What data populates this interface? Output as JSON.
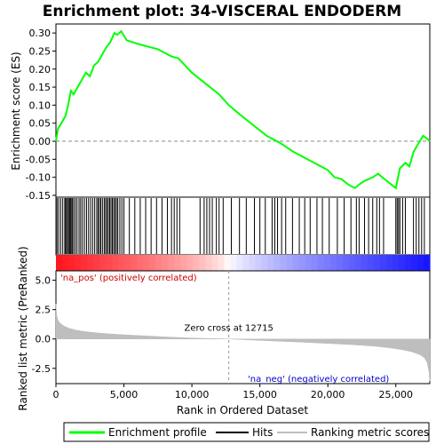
{
  "chart_data": {
    "type": "line",
    "title": "Enrichment plot: 34-VISCERAL ENDODERM",
    "xlabel": "Rank in Ordered Dataset",
    "ylabel_top": "Enrichment score (ES)",
    "ylabel_bottom": "Ranked list metric (PreRanked)",
    "xlim": [
      0,
      27500
    ],
    "x_ticks": [
      0,
      5000,
      10000,
      15000,
      20000,
      25000
    ],
    "x_tick_labels": [
      "0",
      "5,000",
      "10,000",
      "15,000",
      "20,000",
      "25,000"
    ],
    "es_ylim": [
      -0.155,
      0.325
    ],
    "es_ticks": [
      -0.15,
      -0.1,
      -0.05,
      0.0,
      0.05,
      0.1,
      0.15,
      0.2,
      0.25,
      0.3
    ],
    "es_tick_labels": [
      "-0.15",
      "-0.10",
      "-0.05",
      "0.00",
      "0.05",
      "0.10",
      "0.15",
      "0.20",
      "0.25",
      "0.30"
    ],
    "metric_ylim": [
      -3.8,
      5.8
    ],
    "metric_ticks": [
      -2.5,
      0.0,
      2.5,
      5.0
    ],
    "metric_tick_labels": [
      "-2.5",
      "0.0",
      "2.5",
      "5.0"
    ],
    "enrichment_profile": {
      "name": "Enrichment profile",
      "color": "#00ff00",
      "x": [
        0,
        150,
        400,
        700,
        900,
        1100,
        1300,
        1600,
        1900,
        2200,
        2500,
        2800,
        3100,
        3400,
        3700,
        4000,
        4300,
        4500,
        4800,
        5200,
        5600,
        6000,
        6500,
        7000,
        7500,
        8000,
        8500,
        9000,
        9500,
        10000,
        10500,
        11000,
        11500,
        12000,
        12715,
        13500,
        14500,
        15500,
        16500,
        17500,
        18000,
        19000,
        19500,
        20000,
        20500,
        21000,
        21500,
        22000,
        22300,
        22700,
        23000,
        23300,
        23700,
        24000,
        24500,
        25000,
        25300,
        25700,
        26000,
        26300,
        26600,
        27000,
        27200,
        27500
      ],
      "y": [
        0.0,
        0.035,
        0.05,
        0.07,
        0.1,
        0.14,
        0.13,
        0.15,
        0.17,
        0.19,
        0.18,
        0.21,
        0.22,
        0.24,
        0.26,
        0.275,
        0.3,
        0.295,
        0.305,
        0.28,
        0.275,
        0.27,
        0.265,
        0.26,
        0.255,
        0.245,
        0.235,
        0.23,
        0.21,
        0.19,
        0.175,
        0.16,
        0.145,
        0.13,
        0.1,
        0.075,
        0.045,
        0.015,
        -0.005,
        -0.03,
        -0.04,
        -0.06,
        -0.07,
        -0.08,
        -0.1,
        -0.105,
        -0.12,
        -0.13,
        -0.12,
        -0.11,
        -0.105,
        -0.1,
        -0.09,
        -0.1,
        -0.115,
        -0.13,
        -0.075,
        -0.06,
        -0.07,
        -0.03,
        -0.01,
        0.015,
        0.01,
        0.0
      ]
    },
    "hits": {
      "name": "Hits",
      "color": "#000000",
      "x": [
        80,
        200,
        350,
        500,
        650,
        720,
        800,
        900,
        980,
        1050,
        1120,
        1200,
        1300,
        1420,
        1550,
        1700,
        1820,
        1950,
        2100,
        2250,
        2400,
        2550,
        2700,
        2850,
        3000,
        3100,
        3200,
        3300,
        3420,
        3550,
        3650,
        3750,
        3850,
        3950,
        4050,
        4150,
        4250,
        4350,
        4450,
        4550,
        4700,
        4850,
        5000,
        5400,
        5800,
        6200,
        6600,
        7000,
        7400,
        7800,
        8200,
        8500,
        8700,
        8900,
        9100,
        10600,
        10900,
        11100,
        11300,
        11500,
        11800,
        12000,
        12300,
        12900,
        13500,
        14000,
        14600,
        15000,
        15400,
        15900,
        16100,
        16300,
        16600,
        16900,
        17400,
        17900,
        18300,
        18700,
        19200,
        19600,
        20100,
        20700,
        21200,
        21700,
        22100,
        22300,
        22700,
        23000,
        23300,
        23600,
        23800,
        24100,
        25000,
        25100,
        25200,
        25300,
        25500,
        25700,
        26300,
        26500,
        26700,
        26900,
        27100
      ]
    },
    "metric_curve": {
      "name": "Ranking metric scores",
      "color": "#bebebe",
      "x": [
        0,
        50,
        150,
        300,
        600,
        1000,
        1500,
        2000,
        3000,
        4000,
        5000,
        6000,
        7000,
        8000,
        9000,
        10000,
        11000,
        12000,
        12715,
        14000,
        16000,
        18000,
        20000,
        22000,
        23500,
        24500,
        25500,
        26200,
        26800,
        27100,
        27300,
        27450,
        27500
      ],
      "y": [
        3.0,
        2.1,
        1.6,
        1.35,
        1.1,
        0.9,
        0.75,
        0.65,
        0.52,
        0.43,
        0.36,
        0.3,
        0.24,
        0.18,
        0.13,
        0.08,
        0.05,
        0.02,
        0.0,
        -0.07,
        -0.17,
        -0.27,
        -0.38,
        -0.5,
        -0.62,
        -0.75,
        -0.92,
        -1.1,
        -1.35,
        -1.6,
        -2.0,
        -2.8,
        -3.6
      ]
    },
    "zero_cross_x": 12715,
    "zero_cross_label": "Zero cross at 12715",
    "pos_label": "'na_pos' (positively correlated)",
    "neg_label": "'na_neg' (negatively correlated)",
    "legend": {
      "placement": "bottom",
      "items": [
        {
          "label": "Enrichment profile",
          "color": "#00ff00"
        },
        {
          "label": "Hits",
          "color": "#000000"
        },
        {
          "label": "Ranking metric scores",
          "color": "#bebebe"
        }
      ]
    },
    "grid": false
  }
}
